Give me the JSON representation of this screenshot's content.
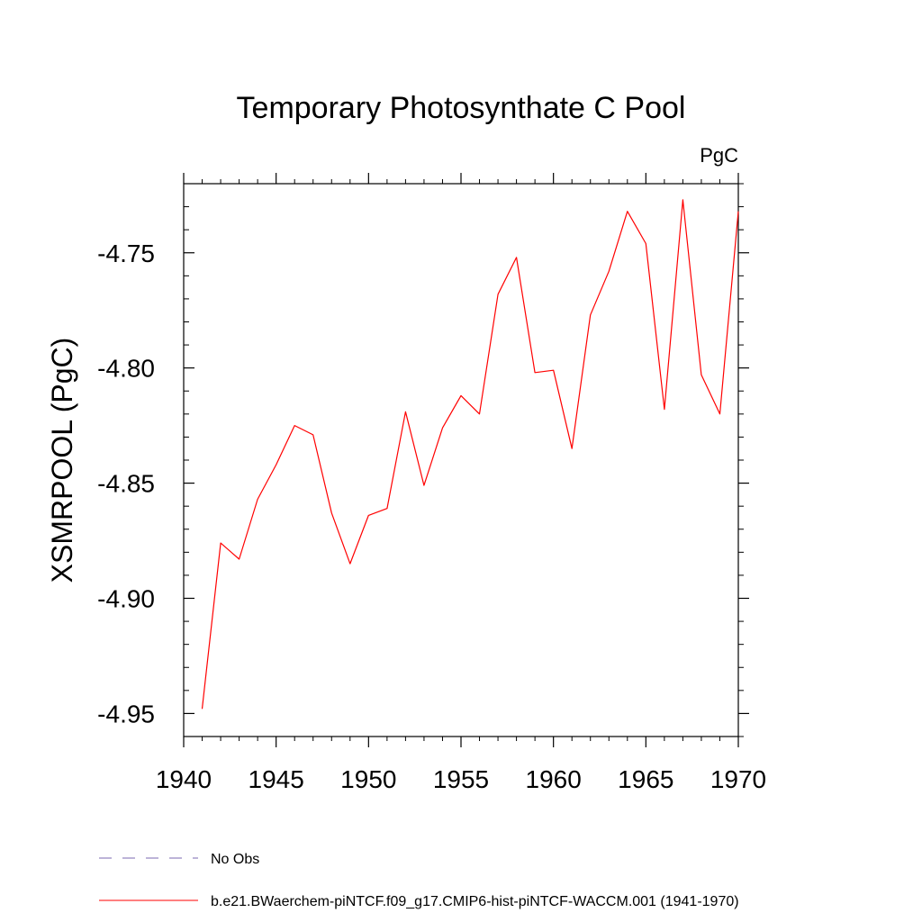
{
  "chart_data": {
    "type": "line",
    "title": "Temporary Photosynthate C Pool",
    "units_label": "PgC",
    "ylabel": "XSMRPOOL  (PgC)",
    "xlabel": "",
    "xlim": [
      1940,
      1970
    ],
    "ylim": [
      -4.96,
      -4.72
    ],
    "x_ticks": [
      1940,
      1945,
      1950,
      1955,
      1960,
      1965,
      1970
    ],
    "x_tick_labels": [
      "1940",
      "1945",
      "1950",
      "1955",
      "1960",
      "1965",
      "1970"
    ],
    "y_ticks": [
      -4.95,
      -4.9,
      -4.85,
      -4.8,
      -4.75
    ],
    "y_tick_labels": [
      "-4.95",
      "-4.90",
      "-4.85",
      "-4.80",
      "-4.75"
    ],
    "grid": false,
    "legend_placement": "bottom-left",
    "series": [
      {
        "name": "b.e21.BWaerchem-piNTCF.f09_g17.CMIP6-hist-piNTCF-WACCM.001 (1941-1970)",
        "color": "#ff0000",
        "style": "solid",
        "x": [
          1941,
          1942,
          1943,
          1944,
          1945,
          1946,
          1947,
          1948,
          1949,
          1950,
          1951,
          1952,
          1953,
          1954,
          1955,
          1956,
          1957,
          1958,
          1959,
          1960,
          1961,
          1962,
          1963,
          1964,
          1965,
          1966,
          1967,
          1968,
          1969,
          1970
        ],
        "values": [
          -4.948,
          -4.876,
          -4.883,
          -4.857,
          -4.842,
          -4.825,
          -4.829,
          -4.863,
          -4.885,
          -4.864,
          -4.861,
          -4.819,
          -4.851,
          -4.826,
          -4.812,
          -4.82,
          -4.768,
          -4.752,
          -4.802,
          -4.801,
          -4.835,
          -4.777,
          -4.758,
          -4.732,
          -4.746,
          -4.818,
          -4.727,
          -4.803,
          -4.82,
          -4.732
        ]
      }
    ],
    "legend": [
      {
        "label": "No Obs",
        "color": "#7b68b0",
        "style": "dashed"
      },
      {
        "label": "b.e21.BWaerchem-piNTCF.f09_g17.CMIP6-hist-piNTCF-WACCM.001 (1941-1970)",
        "color": "#ff0000",
        "style": "solid"
      }
    ]
  }
}
